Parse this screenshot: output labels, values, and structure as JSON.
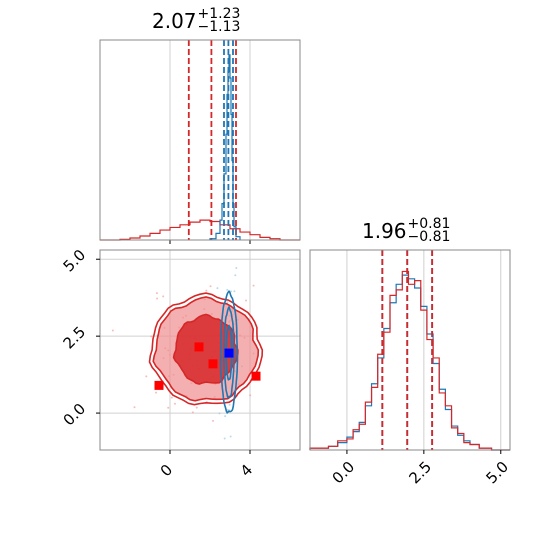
{
  "chart_data": [
    {
      "panel": "top-left-marginal",
      "type": "histogram",
      "title_value": "2.07",
      "title_plus": "+1.23",
      "title_minus": "−1.13",
      "xlim": [
        -3.5,
        6.5
      ],
      "grid": true,
      "series": [
        {
          "color": "#d62728",
          "bin_edges": [
            -3.5,
            -2.5,
            -2.0,
            -1.5,
            -1.0,
            -0.5,
            0.0,
            0.5,
            1.0,
            1.5,
            2.0,
            2.5,
            3.0,
            3.5,
            4.0,
            4.5,
            5.0,
            5.5,
            6.5
          ],
          "counts": [
            0,
            0.01,
            0.03,
            0.06,
            0.1,
            0.15,
            0.19,
            0.23,
            0.27,
            0.3,
            0.28,
            0.23,
            0.17,
            0.12,
            0.08,
            0.04,
            0.02,
            0.0
          ],
          "quantile_lines": [
            0.94,
            2.07,
            3.3
          ]
        },
        {
          "color": "#1f77b4",
          "bin_edges": [
            2.0,
            2.3,
            2.5,
            2.6,
            2.7,
            2.8,
            2.85,
            2.9,
            2.95,
            3.0,
            3.05,
            3.1,
            3.15,
            3.2,
            3.3,
            3.5
          ],
          "counts": [
            0.02,
            0.1,
            0.3,
            0.55,
            1.0,
            1.6,
            2.2,
            2.55,
            2.8,
            2.45,
            1.9,
            1.2,
            0.55,
            0.2,
            0.05
          ],
          "quantile_lines": [
            2.7,
            2.92,
            3.15
          ]
        }
      ]
    },
    {
      "panel": "bottom-left-2d",
      "type": "contour",
      "xlim": [
        -3.5,
        6.5
      ],
      "ylim": [
        -1.2,
        5.3
      ],
      "grid": true,
      "x_ticks": [
        "0",
        "4"
      ],
      "y_ticks": [
        "0.0",
        "2.5",
        "5.0"
      ],
      "x_tick_values": [
        0,
        4
      ],
      "y_tick_values": [
        0.0,
        2.5,
        5.0
      ],
      "series": [
        {
          "color": "#d62728",
          "center": [
            1.8,
            2.05
          ],
          "radii_1sigma": [
            1.55,
            1.1
          ],
          "radii_2sigma": [
            2.55,
            1.65
          ]
        },
        {
          "color": "#1f77b4",
          "center": [
            2.95,
            1.95
          ],
          "radii_1sigma": [
            0.25,
            1.45
          ],
          "radii_2sigma": [
            0.42,
            1.95
          ]
        }
      ],
      "markers": [
        {
          "color": "#ff0000",
          "x": -0.55,
          "y": 0.9
        },
        {
          "color": "#ff0000",
          "x": 1.45,
          "y": 2.15
        },
        {
          "color": "#ff0000",
          "x": 2.15,
          "y": 1.6
        },
        {
          "color": "#ff0000",
          "x": 4.3,
          "y": 1.2
        },
        {
          "color": "#0000ff",
          "x": 2.95,
          "y": 1.95
        }
      ]
    },
    {
      "panel": "bottom-right-marginal",
      "type": "histogram",
      "title_value": "1.96",
      "title_plus": "+0.81",
      "title_minus": "−0.81",
      "xlim": [
        -1.2,
        5.3
      ],
      "grid": true,
      "x_ticks": [
        "0.0",
        "2.5",
        "5.0"
      ],
      "x_tick_values": [
        0.0,
        2.5,
        5.0
      ],
      "series": [
        {
          "color": "#1f77b4",
          "bin_edges": [
            -1.2,
            -0.6,
            -0.3,
            0.0,
            0.2,
            0.4,
            0.6,
            0.8,
            1.0,
            1.2,
            1.4,
            1.6,
            1.8,
            2.0,
            2.2,
            2.4,
            2.6,
            2.8,
            3.0,
            3.2,
            3.4,
            3.6,
            3.8,
            4.0,
            4.3,
            4.7,
            5.3
          ],
          "counts": [
            0.01,
            0.02,
            0.04,
            0.07,
            0.1,
            0.15,
            0.24,
            0.36,
            0.5,
            0.66,
            0.8,
            0.9,
            0.95,
            0.93,
            0.88,
            0.78,
            0.63,
            0.47,
            0.33,
            0.22,
            0.13,
            0.08,
            0.05,
            0.03,
            0.01,
            0.0
          ],
          "quantile_lines": [
            1.15,
            1.96,
            2.77
          ]
        },
        {
          "color": "#d62728",
          "bin_edges": [
            -1.2,
            -0.6,
            -0.3,
            0.0,
            0.2,
            0.4,
            0.6,
            0.8,
            1.0,
            1.2,
            1.4,
            1.6,
            1.8,
            2.0,
            2.2,
            2.4,
            2.6,
            2.8,
            3.0,
            3.2,
            3.4,
            3.6,
            3.8,
            4.0,
            4.3,
            4.7,
            5.3
          ],
          "counts": [
            0.01,
            0.02,
            0.05,
            0.06,
            0.11,
            0.14,
            0.26,
            0.34,
            0.52,
            0.64,
            0.84,
            0.87,
            0.97,
            0.9,
            0.92,
            0.76,
            0.6,
            0.5,
            0.31,
            0.24,
            0.12,
            0.09,
            0.04,
            0.03,
            0.01,
            0.0
          ],
          "quantile_lines": [
            1.15,
            1.96,
            2.77
          ]
        }
      ]
    }
  ]
}
